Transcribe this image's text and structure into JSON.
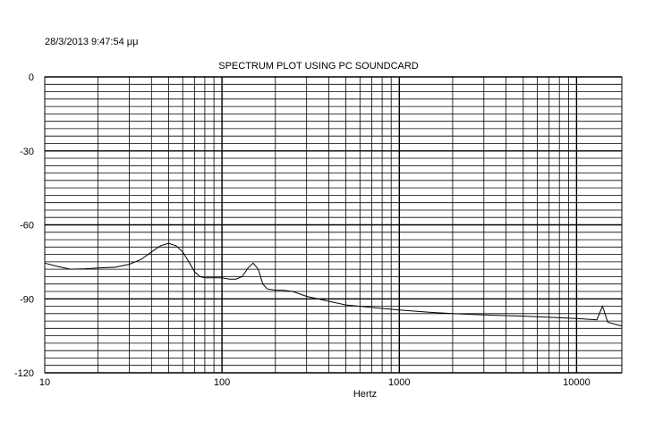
{
  "timestamp": "28/3/2013 9:47:54 μμ",
  "chart_data": {
    "type": "line",
    "title": "SPECTRUM PLOT USING PC SOUNDCARD",
    "xlabel": "Hertz",
    "ylabel": "",
    "x_scale": "log",
    "xlim": [
      10,
      18000
    ],
    "ylim": [
      -120,
      0
    ],
    "x_ticks": [
      10,
      100,
      1000,
      10000
    ],
    "x_tick_labels": [
      "10",
      "100",
      "1000",
      "10000"
    ],
    "y_ticks": [
      0,
      -30,
      -60,
      -90,
      -120
    ],
    "y_tick_labels": [
      "0",
      "-30",
      "-60",
      "-90",
      "-120"
    ],
    "grid": true,
    "series": [
      {
        "values": [
          [
            10,
            -75.5
          ],
          [
            12,
            -77
          ],
          [
            14,
            -78
          ],
          [
            17,
            -77.8
          ],
          [
            20,
            -77.5
          ],
          [
            25,
            -77.2
          ],
          [
            30,
            -76
          ],
          [
            35,
            -74
          ],
          [
            40,
            -71
          ],
          [
            45,
            -68.5
          ],
          [
            50,
            -67.5
          ],
          [
            55,
            -68.5
          ],
          [
            60,
            -71
          ],
          [
            65,
            -75
          ],
          [
            70,
            -79
          ],
          [
            75,
            -81
          ],
          [
            80,
            -81.5
          ],
          [
            90,
            -81.5
          ],
          [
            100,
            -81.5
          ],
          [
            110,
            -82
          ],
          [
            120,
            -82
          ],
          [
            130,
            -81
          ],
          [
            140,
            -77.5
          ],
          [
            150,
            -75.5
          ],
          [
            160,
            -78
          ],
          [
            170,
            -84
          ],
          [
            180,
            -86
          ],
          [
            200,
            -86.5
          ],
          [
            220,
            -86.5
          ],
          [
            250,
            -87
          ],
          [
            300,
            -89
          ],
          [
            400,
            -91
          ],
          [
            500,
            -92.5
          ],
          [
            700,
            -93.5
          ],
          [
            1000,
            -94.5
          ],
          [
            1500,
            -95.5
          ],
          [
            2000,
            -96
          ],
          [
            3000,
            -96.5
          ],
          [
            5000,
            -97
          ],
          [
            7000,
            -97.5
          ],
          [
            10000,
            -98
          ],
          [
            13000,
            -98.5
          ],
          [
            14000,
            -93
          ],
          [
            15000,
            -99.5
          ],
          [
            18000,
            -101
          ]
        ]
      }
    ]
  }
}
